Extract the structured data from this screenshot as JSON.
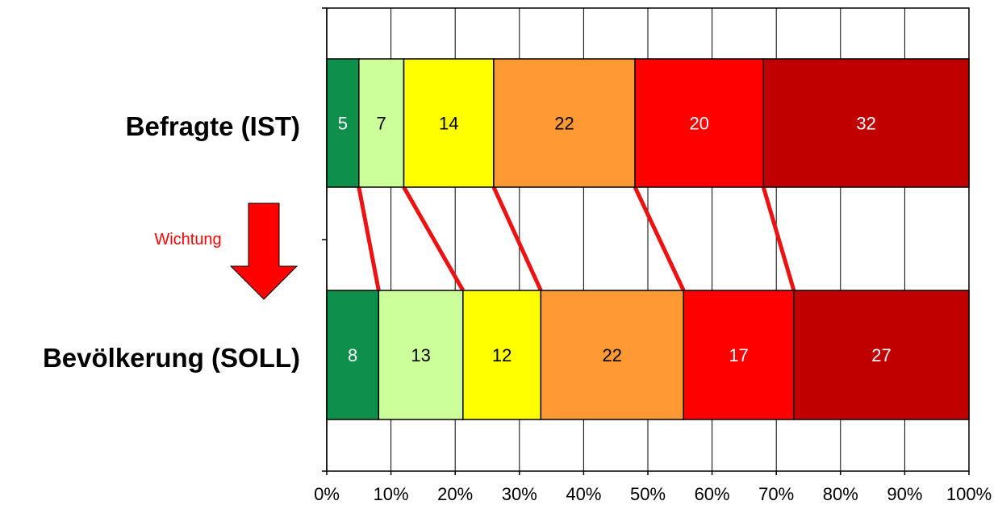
{
  "chart_data": {
    "type": "bar",
    "orientation": "horizontal",
    "stacked": true,
    "normalized": true,
    "categories": [
      "Befragte (IST)",
      "Bevölkerung (SOLL)"
    ],
    "series": [
      {
        "values": [
          5,
          8
        ],
        "color": "#0E8F4C",
        "text_color": "#FFFFFF"
      },
      {
        "values": [
          7,
          13
        ],
        "color": "#CCFF99",
        "text_color": "#000000"
      },
      {
        "values": [
          14,
          12
        ],
        "color": "#FFFF00",
        "text_color": "#000000"
      },
      {
        "values": [
          22,
          22
        ],
        "color": "#FF9933",
        "text_color": "#000000"
      },
      {
        "values": [
          20,
          17
        ],
        "color": "#FF0000",
        "text_color": "#FFFFFF"
      },
      {
        "values": [
          32,
          27
        ],
        "color": "#C00000",
        "text_color": "#FFFFFF"
      }
    ],
    "x_ticks": [
      "0%",
      "10%",
      "20%",
      "30%",
      "40%",
      "50%",
      "60%",
      "70%",
      "80%",
      "90%",
      "100%"
    ],
    "xlim": [
      0,
      100
    ],
    "grid": "vertical",
    "legend": "none",
    "title": "",
    "xlabel": "",
    "ylabel": "",
    "connector_color": "#EE1111"
  },
  "annotation": {
    "arrow_label": "Wichtung",
    "arrow_color": "#FF0000"
  }
}
